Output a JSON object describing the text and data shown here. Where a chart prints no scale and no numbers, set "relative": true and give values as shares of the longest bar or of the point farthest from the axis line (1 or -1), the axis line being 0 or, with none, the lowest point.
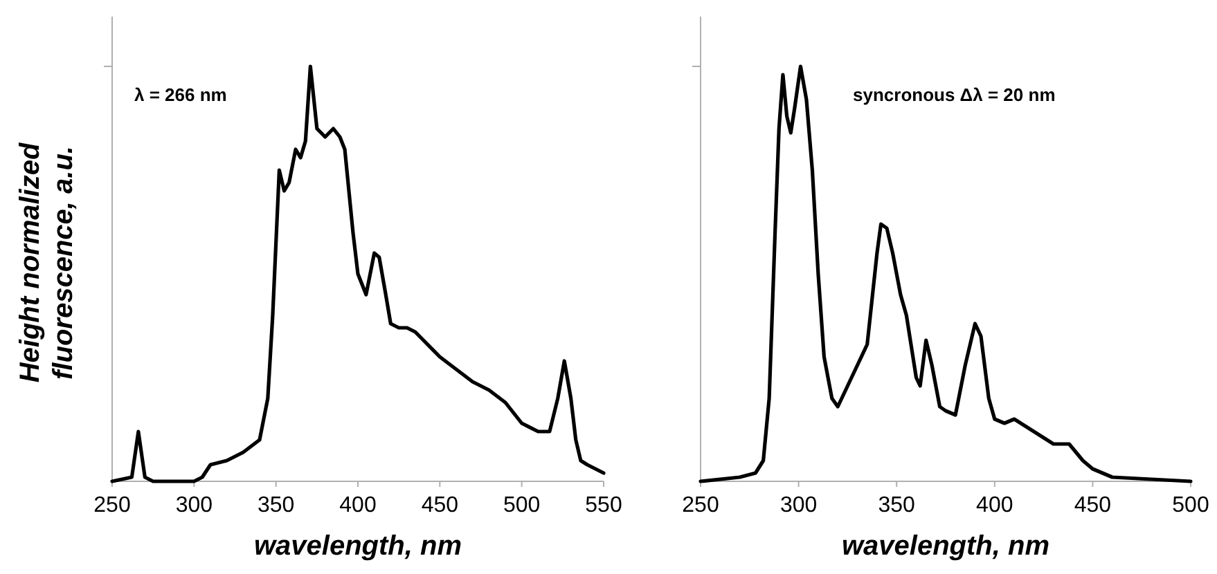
{
  "chart_data": [
    {
      "type": "line",
      "relative": true,
      "ylabel": "Height normalized fluorescence, a.u.",
      "xlabel": "wavelength, nm",
      "xlim": [
        250,
        550
      ],
      "xticks": [
        250,
        300,
        350,
        400,
        450,
        500,
        550
      ],
      "annotations": [
        "λ = 266 nm"
      ],
      "series": [
        {
          "color": "#000000",
          "x": [
            250,
            262,
            266,
            270,
            275,
            300,
            305,
            310,
            320,
            330,
            340,
            345,
            348,
            352,
            355,
            358,
            362,
            365,
            368,
            371,
            375,
            380,
            385,
            389,
            392,
            397,
            400,
            405,
            410,
            413,
            417,
            420,
            425,
            430,
            435,
            440,
            450,
            460,
            470,
            480,
            490,
            500,
            510,
            517,
            522,
            526,
            530,
            533,
            536,
            540,
            550
          ],
          "values": [
            0,
            0.01,
            0.12,
            0.01,
            0,
            0,
            0.01,
            0.04,
            0.05,
            0.07,
            0.1,
            0.2,
            0.4,
            0.75,
            0.7,
            0.72,
            0.8,
            0.78,
            0.82,
            1,
            0.85,
            0.83,
            0.85,
            0.83,
            0.8,
            0.6,
            0.5,
            0.45,
            0.55,
            0.54,
            0.45,
            0.38,
            0.37,
            0.37,
            0.36,
            0.34,
            0.3,
            0.27,
            0.24,
            0.22,
            0.19,
            0.14,
            0.12,
            0.12,
            0.2,
            0.29,
            0.2,
            0.1,
            0.05,
            0.04,
            0.02
          ]
        }
      ]
    },
    {
      "type": "line",
      "relative": true,
      "xlabel": "wavelength, nm",
      "xlim": [
        250,
        500
      ],
      "xticks": [
        250,
        300,
        350,
        400,
        450,
        500
      ],
      "annotations": [
        "syncronous Δλ = 20 nm"
      ],
      "series": [
        {
          "color": "#000000",
          "x": [
            250,
            270,
            278,
            282,
            285,
            288,
            290,
            292,
            294,
            296,
            298,
            301,
            304,
            307,
            310,
            313,
            317,
            320,
            325,
            330,
            335,
            340,
            342,
            345,
            348,
            352,
            355,
            360,
            362,
            365,
            368,
            372,
            375,
            380,
            385,
            390,
            393,
            397,
            400,
            405,
            410,
            420,
            430,
            438,
            445,
            450,
            460,
            480,
            500
          ],
          "values": [
            0,
            0.01,
            0.02,
            0.05,
            0.2,
            0.6,
            0.85,
            0.98,
            0.88,
            0.84,
            0.9,
            1,
            0.92,
            0.75,
            0.5,
            0.3,
            0.2,
            0.18,
            0.23,
            0.28,
            0.33,
            0.55,
            0.62,
            0.61,
            0.55,
            0.45,
            0.4,
            0.25,
            0.23,
            0.34,
            0.28,
            0.18,
            0.17,
            0.16,
            0.28,
            0.38,
            0.35,
            0.2,
            0.15,
            0.14,
            0.15,
            0.12,
            0.09,
            0.09,
            0.05,
            0.03,
            0.01,
            0.005,
            0
          ]
        }
      ]
    }
  ]
}
